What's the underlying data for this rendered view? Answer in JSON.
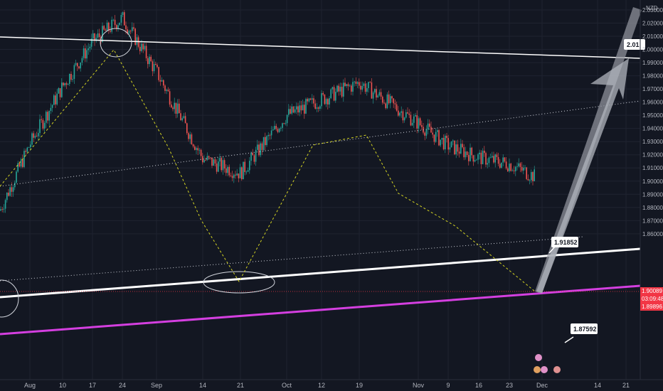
{
  "currency": "NZD",
  "colors": {
    "background": "#131722",
    "grid": "#1f2330",
    "up": "#26a69a",
    "down": "#ef5350",
    "trendline": "#ffffff",
    "support_magenta": "#d43fe0",
    "zigzag": "#d4d422",
    "current_price_bg": "#f23645",
    "arrow": "#c8ccd6"
  },
  "chart_data": {
    "type": "candlestick",
    "x_ticks": [
      "Aug",
      "10",
      "17",
      "24",
      "Sep",
      "14",
      "21",
      "Oct",
      "12",
      "19",
      "Nov",
      "9",
      "16",
      "23",
      "Dec",
      "14",
      "21"
    ],
    "y_ticks": [
      "2.03000",
      "2.02000",
      "2.01000",
      "2.00000",
      "1.99000",
      "1.98000",
      "1.97000",
      "1.96000",
      "1.95000",
      "1.94000",
      "1.93000",
      "1.92000",
      "1.91000",
      "1.90000",
      "1.89000",
      "1.88000",
      "1.87000",
      "1.86000"
    ],
    "ylim": [
      1.857,
      2.045
    ],
    "price_path": [
      [
        "Aug",
        1.928
      ],
      [
        "10",
        1.972
      ],
      [
        "17",
        2.006
      ],
      [
        "24",
        2.024
      ],
      [
        "Sep",
        1.983
      ],
      [
        "14",
        1.917
      ],
      [
        "21",
        1.906
      ],
      [
        "Oct",
        1.95
      ],
      [
        "12",
        1.962
      ],
      [
        "19",
        1.975
      ],
      [
        "Nov",
        1.944
      ],
      [
        "9",
        1.927
      ],
      [
        "16",
        1.918
      ],
      [
        "23",
        1.913
      ],
      [
        "Dec",
        1.9009
      ]
    ],
    "current_price": "1.90089",
    "countdown": "03:09:48",
    "low_price": "1.89896",
    "callouts": [
      "2.01",
      "1.91852",
      "1.87592"
    ]
  }
}
